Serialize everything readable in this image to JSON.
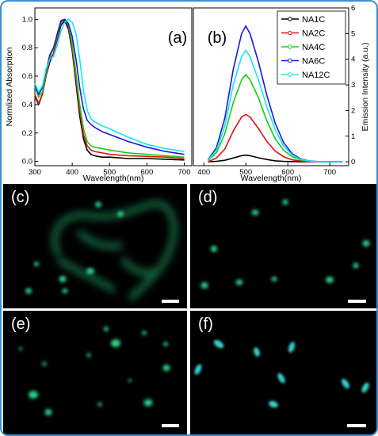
{
  "panels": {
    "a": "(a)",
    "b": "(b)",
    "c": "(c)",
    "d": "(d)",
    "e": "(e)",
    "f": "(f)"
  },
  "colors": {
    "NA1C": "#000000",
    "NA2C": "#e01010",
    "NA4C": "#10d010",
    "NA6C": "#1818e0",
    "NA12C": "#10e8f0",
    "particle": "#2fd08a",
    "particle_f": "#38d0d0",
    "border": "#3a8fd6"
  },
  "chart_data": [
    {
      "type": "line",
      "panel": "(a)",
      "xlabel": "Wavelength(nm)",
      "ylabel": "Normlized Absorption",
      "xlim": [
        300,
        720
      ],
      "ylim": [
        -0.03,
        1.08
      ],
      "xticks": [
        300,
        400,
        500,
        600,
        700
      ],
      "yticks": [
        0.0,
        0.2,
        0.4,
        0.6,
        0.8,
        1.0
      ],
      "ytick_labels": [
        "0.0",
        "0.2",
        "0.4",
        "0.6",
        "0.8",
        "1.0"
      ],
      "series": [
        {
          "name": "NA1C",
          "x": [
            300,
            310,
            320,
            330,
            340,
            350,
            360,
            370,
            380,
            390,
            400,
            410,
            420,
            430,
            440,
            450,
            460,
            480,
            500,
            550,
            600,
            650,
            700
          ],
          "values": [
            0.46,
            0.4,
            0.47,
            0.6,
            0.7,
            0.76,
            0.86,
            0.96,
            0.99,
            0.93,
            0.78,
            0.55,
            0.32,
            0.16,
            0.08,
            0.05,
            0.04,
            0.03,
            0.03,
            0.02,
            0.02,
            0.015,
            0.01
          ]
        },
        {
          "name": "NA2C",
          "x": [
            300,
            310,
            320,
            330,
            340,
            350,
            360,
            370,
            380,
            390,
            400,
            410,
            420,
            430,
            440,
            450,
            460,
            480,
            500,
            550,
            600,
            650,
            700
          ],
          "values": [
            0.47,
            0.41,
            0.47,
            0.6,
            0.72,
            0.76,
            0.87,
            0.98,
            1.0,
            0.95,
            0.8,
            0.58,
            0.36,
            0.19,
            0.11,
            0.08,
            0.07,
            0.06,
            0.05,
            0.04,
            0.035,
            0.03,
            0.02
          ]
        },
        {
          "name": "NA4C",
          "x": [
            300,
            310,
            320,
            330,
            340,
            350,
            360,
            370,
            380,
            390,
            400,
            410,
            420,
            430,
            440,
            450,
            460,
            480,
            500,
            550,
            600,
            650,
            700
          ],
          "values": [
            0.53,
            0.45,
            0.49,
            0.62,
            0.74,
            0.79,
            0.89,
            0.99,
            1.0,
            0.96,
            0.83,
            0.62,
            0.4,
            0.23,
            0.14,
            0.11,
            0.1,
            0.09,
            0.08,
            0.06,
            0.05,
            0.04,
            0.03
          ]
        },
        {
          "name": "NA6C",
          "x": [
            300,
            310,
            320,
            330,
            340,
            350,
            360,
            370,
            380,
            390,
            400,
            410,
            420,
            430,
            440,
            450,
            460,
            480,
            500,
            550,
            600,
            650,
            700
          ],
          "values": [
            0.54,
            0.47,
            0.52,
            0.64,
            0.75,
            0.8,
            0.9,
            0.99,
            1.0,
            0.97,
            0.88,
            0.72,
            0.52,
            0.37,
            0.29,
            0.26,
            0.24,
            0.21,
            0.19,
            0.14,
            0.1,
            0.07,
            0.05
          ]
        },
        {
          "name": "NA12C",
          "x": [
            300,
            310,
            320,
            330,
            340,
            350,
            360,
            370,
            380,
            390,
            400,
            410,
            420,
            430,
            440,
            450,
            460,
            480,
            500,
            550,
            600,
            650,
            700
          ],
          "values": [
            0.55,
            0.49,
            0.53,
            0.65,
            0.72,
            0.74,
            0.82,
            0.92,
            0.98,
            1.0,
            0.98,
            0.9,
            0.72,
            0.5,
            0.36,
            0.3,
            0.28,
            0.25,
            0.23,
            0.17,
            0.12,
            0.09,
            0.07
          ]
        }
      ]
    },
    {
      "type": "line",
      "panel": "(b)",
      "xlabel": "Wavelength(nm)",
      "ylabel": "Emission Intensity (a.u.)",
      "xlim": [
        375,
        745
      ],
      "ylim": [
        -0.15,
        6
      ],
      "xticks": [
        400,
        500,
        600,
        700
      ],
      "yticks": [
        0,
        1,
        2,
        3,
        4,
        5,
        6
      ],
      "legend": "top-right",
      "series": [
        {
          "name": "NA1C",
          "x": [
            410,
            430,
            450,
            470,
            490,
            500,
            510,
            530,
            550,
            570,
            590,
            610,
            630,
            650,
            670,
            700,
            730
          ],
          "values": [
            0.0,
            0.02,
            0.06,
            0.15,
            0.24,
            0.26,
            0.24,
            0.16,
            0.09,
            0.04,
            0.02,
            0.01,
            0.0,
            0.0,
            0.0,
            0.0,
            0.0
          ]
        },
        {
          "name": "NA2C",
          "x": [
            410,
            430,
            450,
            470,
            490,
            500,
            510,
            530,
            550,
            570,
            590,
            610,
            630,
            650,
            670,
            700,
            730
          ],
          "values": [
            0.0,
            0.15,
            0.5,
            1.2,
            1.75,
            1.85,
            1.75,
            1.3,
            0.8,
            0.42,
            0.2,
            0.08,
            0.03,
            0.01,
            0.0,
            0.0,
            0.0
          ]
        },
        {
          "name": "NA4C",
          "x": [
            410,
            430,
            450,
            470,
            490,
            500,
            510,
            530,
            550,
            570,
            590,
            610,
            630,
            650,
            670,
            700,
            730
          ],
          "values": [
            0.05,
            0.35,
            1.1,
            2.3,
            3.2,
            3.4,
            3.2,
            2.5,
            1.6,
            0.9,
            0.45,
            0.2,
            0.08,
            0.03,
            0.01,
            0.0,
            0.0
          ]
        },
        {
          "name": "NA6C",
          "x": [
            410,
            430,
            450,
            470,
            490,
            500,
            510,
            530,
            550,
            570,
            590,
            610,
            630,
            650,
            670,
            700,
            730
          ],
          "values": [
            0.08,
            0.55,
            1.7,
            3.6,
            5.0,
            5.3,
            5.0,
            3.9,
            2.6,
            1.5,
            0.75,
            0.32,
            0.12,
            0.04,
            0.01,
            0.0,
            0.0
          ]
        },
        {
          "name": "NA12C",
          "x": [
            410,
            430,
            450,
            470,
            490,
            500,
            510,
            530,
            550,
            570,
            590,
            610,
            630,
            650,
            670,
            700,
            730
          ],
          "values": [
            0.07,
            0.45,
            1.4,
            3.0,
            4.1,
            4.35,
            4.1,
            3.2,
            2.15,
            1.25,
            0.62,
            0.27,
            0.1,
            0.03,
            0.01,
            0.0,
            0.0
          ]
        }
      ]
    }
  ]
}
